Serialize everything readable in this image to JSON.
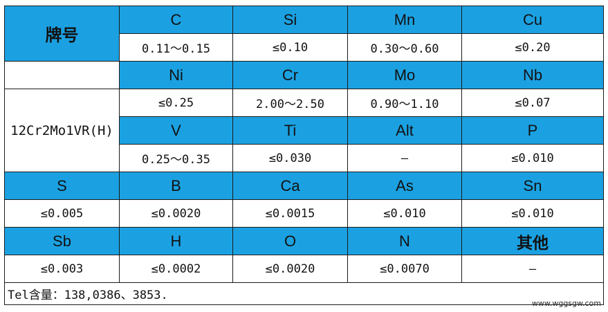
{
  "table": {
    "brand_header": "牌号",
    "grade": "12Cr2Mo1VR(H)",
    "row1": {
      "elements": [
        "C",
        "Si",
        "Mn",
        "Cu"
      ],
      "values": [
        "0.11～0.15",
        "≤0.10",
        "0.30～0.60",
        "≤0.20"
      ]
    },
    "row2": {
      "elements": [
        "Ni",
        "Cr",
        "Mo",
        "Nb"
      ],
      "values": [
        "≤0.25",
        "2.00～2.50",
        "0.90～1.10",
        "≤0.07"
      ]
    },
    "row3": {
      "elements": [
        "V",
        "Ti",
        "Alt",
        "P"
      ],
      "values": [
        "0.25～0.35",
        "≤0.030",
        "—",
        "≤0.010"
      ]
    },
    "row4": {
      "elements": [
        "S",
        "B",
        "Ca",
        "As",
        "Sn"
      ],
      "values": [
        "≤0.005",
        "≤0.0020",
        "≤0.0015",
        "≤0.010",
        "≤0.010"
      ]
    },
    "row5": {
      "elements": [
        "Sb",
        "H",
        "O",
        "N",
        "其他"
      ],
      "values": [
        "≤0.003",
        "≤0.0002",
        "≤0.0020",
        "≤0.0070",
        "—"
      ]
    },
    "note": "Tel含量：138,0386、3853."
  },
  "watermark": "www.wggsgw.com",
  "colors": {
    "header_bg": "#1ba1e2",
    "border": "#1a1a1a",
    "cell_bg": "#ffffff"
  }
}
